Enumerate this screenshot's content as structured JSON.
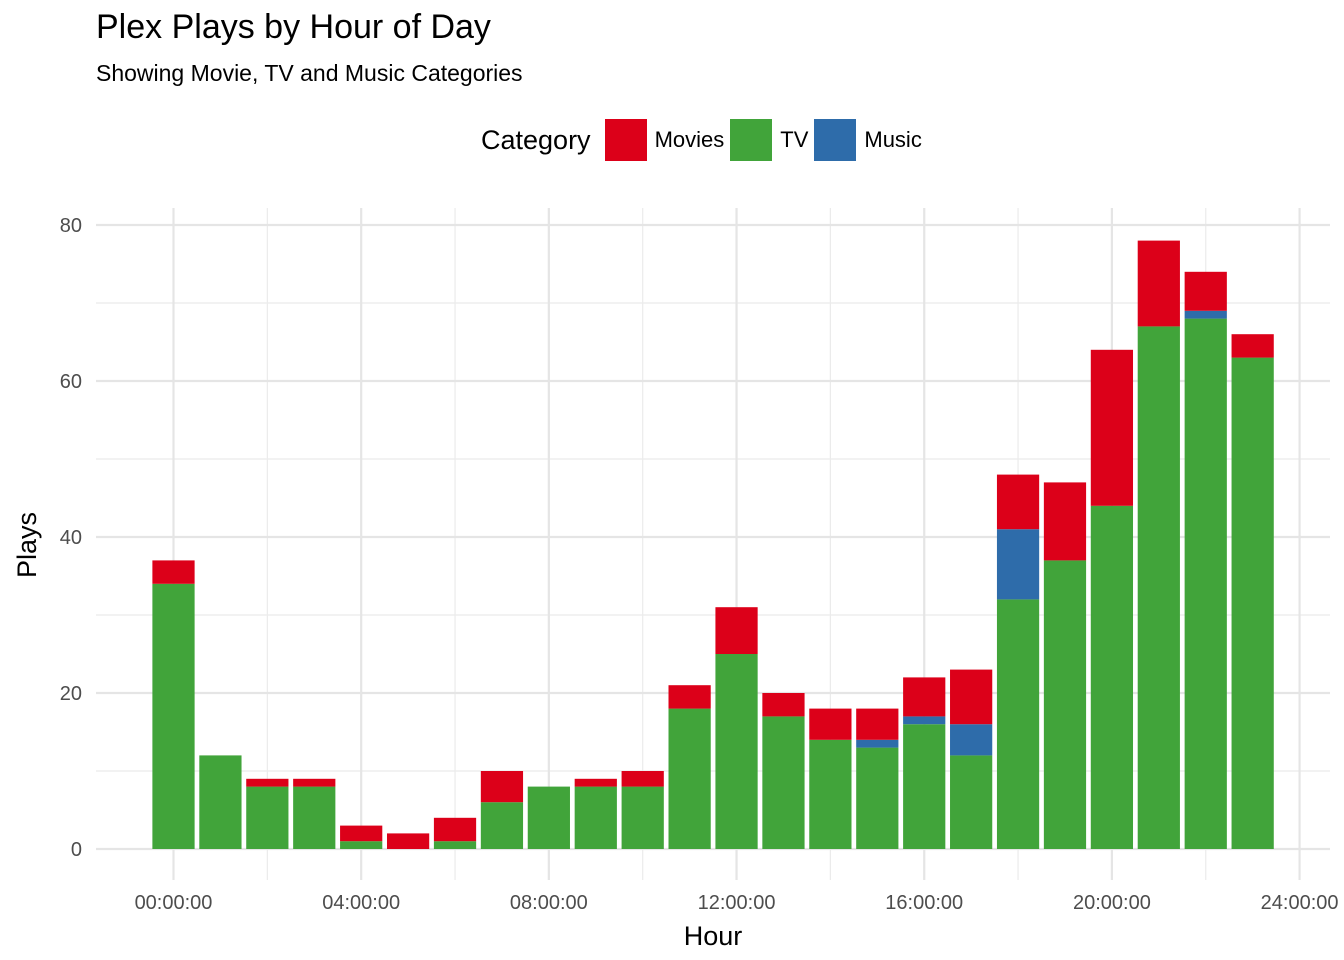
{
  "chart_data": {
    "type": "bar",
    "stacked": true,
    "title": "Plex Plays by Hour of Day",
    "subtitle": "Showing Movie, TV and Music Categories",
    "xlabel": "Hour",
    "ylabel": "Plays",
    "legend_title": "Category",
    "legend_position": "top",
    "grid": true,
    "categories": [
      0,
      1,
      2,
      3,
      4,
      5,
      6,
      7,
      8,
      9,
      10,
      11,
      12,
      13,
      14,
      15,
      16,
      17,
      18,
      19,
      20,
      21,
      22,
      23
    ],
    "x_tick_labels": [
      "00:00:00",
      "04:00:00",
      "08:00:00",
      "12:00:00",
      "16:00:00",
      "20:00:00",
      "24:00:00"
    ],
    "x_tick_values": [
      0,
      4,
      8,
      12,
      16,
      20,
      24
    ],
    "y_tick_labels": [
      "0",
      "20",
      "40",
      "60",
      "80"
    ],
    "y_tick_values": [
      0,
      20,
      40,
      60,
      80
    ],
    "ylim": [
      0,
      80
    ],
    "series": [
      {
        "name": "TV",
        "color": "#41A43A",
        "values": [
          34,
          12,
          8,
          8,
          1,
          0,
          1,
          6,
          8,
          8,
          8,
          18,
          25,
          17,
          14,
          13,
          16,
          12,
          32,
          37,
          44,
          67,
          68,
          63
        ]
      },
      {
        "name": "Music",
        "color": "#2E6CAA",
        "values": [
          0,
          0,
          0,
          0,
          0,
          0,
          0,
          0,
          0,
          0,
          0,
          0,
          0,
          0,
          0,
          1,
          1,
          4,
          9,
          0,
          0,
          0,
          1,
          0
        ]
      },
      {
        "name": "Movies",
        "color": "#DC0019",
        "values": [
          3,
          0,
          1,
          1,
          2,
          2,
          3,
          4,
          0,
          1,
          2,
          3,
          6,
          3,
          4,
          4,
          5,
          7,
          7,
          10,
          20,
          11,
          5,
          3
        ]
      }
    ],
    "legend_order": [
      "Movies",
      "TV",
      "Music"
    ]
  }
}
